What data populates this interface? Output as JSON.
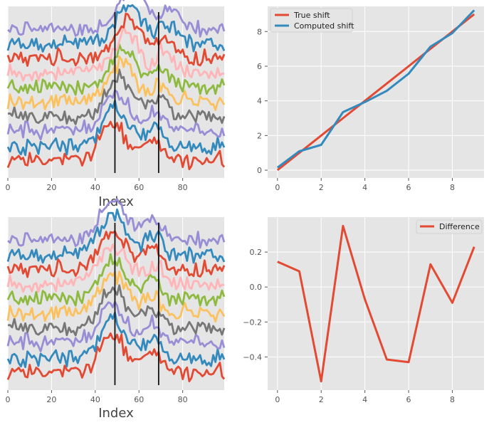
{
  "colors": {
    "panel_bg": "#e5e5e5",
    "grid": "#ffffff",
    "marker_line": "#111111",
    "cycle": [
      "#e24a33",
      "#348abd",
      "#988ed5",
      "#777777",
      "#fbc15e",
      "#8eba42",
      "#ffb5b8"
    ]
  },
  "chart_data": [
    {
      "id": "top-left",
      "type": "line",
      "title": "",
      "xlabel": "Index",
      "ylabel": "",
      "xlim": [
        0,
        99
      ],
      "ylim": [
        -1.2,
        10.5
      ],
      "xticks": [
        0,
        20,
        40,
        60,
        80
      ],
      "yticks": [],
      "vlines": [
        49,
        69
      ],
      "series_note": "10 noisy traces with a peak that shifts right as the trace index grows",
      "series": [
        {
          "offset": 0.0,
          "shift": 0.0
        },
        {
          "offset": 1.0,
          "shift": 1.0
        },
        {
          "offset": 2.0,
          "shift": 2.0
        },
        {
          "offset": 3.0,
          "shift": 3.0
        },
        {
          "offset": 4.0,
          "shift": 4.0
        },
        {
          "offset": 5.0,
          "shift": 5.0
        },
        {
          "offset": 6.0,
          "shift": 6.0
        },
        {
          "offset": 7.0,
          "shift": 7.0
        },
        {
          "offset": 8.0,
          "shift": 8.0
        },
        {
          "offset": 9.0,
          "shift": 9.0
        }
      ]
    },
    {
      "id": "top-right",
      "type": "line",
      "title": "",
      "xlabel": "",
      "ylabel": "",
      "xlim": [
        -0.45,
        9.45
      ],
      "ylim": [
        -0.45,
        9.45
      ],
      "xticks": [
        0,
        2,
        4,
        6,
        8
      ],
      "yticks": [
        0,
        2,
        4,
        6,
        8
      ],
      "legend_position": "top-left",
      "series": [
        {
          "name": "True shift",
          "color": "#e24a33",
          "x": [
            0,
            1,
            2,
            3,
            4,
            5,
            6,
            7,
            8,
            9
          ],
          "values": [
            0,
            1,
            2,
            3,
            4,
            5,
            6,
            7,
            8,
            9
          ]
        },
        {
          "name": "Computed shift",
          "color": "#348abd",
          "x": [
            0,
            1,
            2,
            3,
            4,
            5,
            6,
            7,
            8,
            9
          ],
          "values": [
            0.15,
            1.09,
            1.46,
            3.35,
            3.93,
            4.58,
            5.57,
            7.13,
            7.91,
            9.23
          ]
        }
      ]
    },
    {
      "id": "bottom-left",
      "type": "line",
      "title": "",
      "xlabel": "Index",
      "ylabel": "",
      "xlim": [
        0,
        99
      ],
      "ylim": [
        -1.2,
        10.5
      ],
      "xticks": [
        0,
        20,
        40,
        60,
        80
      ],
      "yticks": [],
      "vlines": [
        49,
        69
      ],
      "series_note": "the same 10 traces after alignment, peaks lined up",
      "series": [
        {
          "offset": 0.0,
          "shift": 0.0
        },
        {
          "offset": 1.0,
          "shift": 0.0
        },
        {
          "offset": 2.0,
          "shift": 0.0
        },
        {
          "offset": 3.0,
          "shift": 0.0
        },
        {
          "offset": 4.0,
          "shift": 0.0
        },
        {
          "offset": 5.0,
          "shift": 0.0
        },
        {
          "offset": 6.0,
          "shift": 0.0
        },
        {
          "offset": 7.0,
          "shift": 0.0
        },
        {
          "offset": 8.0,
          "shift": 0.0
        },
        {
          "offset": 9.0,
          "shift": 0.0
        }
      ]
    },
    {
      "id": "bottom-right",
      "type": "line",
      "title": "",
      "xlabel": "",
      "ylabel": "",
      "xlim": [
        -0.45,
        9.45
      ],
      "ylim": [
        -0.59,
        0.4
      ],
      "xticks": [
        0,
        2,
        4,
        6,
        8
      ],
      "yticks": [
        -0.4,
        -0.2,
        0.0,
        0.2
      ],
      "ytick_labels": [
        "−0.4",
        "−0.2",
        "0.0",
        "0.2"
      ],
      "legend_position": "top-right",
      "series": [
        {
          "name": "Difference",
          "color": "#e24a33",
          "x": [
            0,
            1,
            2,
            3,
            4,
            5,
            6,
            7,
            8,
            9
          ],
          "values": [
            0.145,
            0.09,
            -0.54,
            0.35,
            -0.07,
            -0.415,
            -0.43,
            0.13,
            -0.09,
            0.23
          ]
        }
      ]
    }
  ]
}
